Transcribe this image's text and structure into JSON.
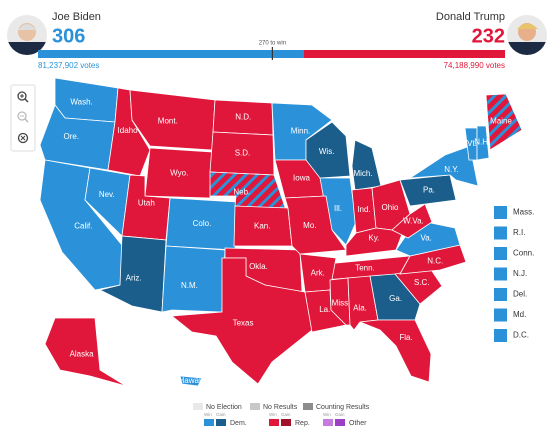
{
  "header": {
    "candidates": [
      {
        "name": "Joe Biden",
        "electoral_votes": 306,
        "votes": "81,237,902 votes",
        "color": "#2b92d9"
      },
      {
        "name": "Donald Trump",
        "electoral_votes": 232,
        "votes": "74,188,990 votes",
        "color": "#e0173a"
      }
    ],
    "threshold": {
      "value": 270,
      "label": "270 to win"
    }
  },
  "map": {
    "states": [
      {
        "label": "Wash.",
        "color": "#2b92d9"
      },
      {
        "label": "Ore.",
        "color": "#2b92d9"
      },
      {
        "label": "Calif.",
        "color": "#2b92d9"
      },
      {
        "label": "Nev.",
        "color": "#2b92d9"
      },
      {
        "label": "Idaho",
        "color": "#e0173a"
      },
      {
        "label": "Mont.",
        "color": "#e0173a"
      },
      {
        "label": "Wyo.",
        "color": "#e0173a"
      },
      {
        "label": "Utah",
        "color": "#e0173a"
      },
      {
        "label": "Ariz.",
        "color": "#1b5e8c"
      },
      {
        "label": "Colo.",
        "color": "#2b92d9"
      },
      {
        "label": "N.M.",
        "color": "#2b92d9"
      },
      {
        "label": "N.D.",
        "color": "#e0173a"
      },
      {
        "label": "S.D.",
        "color": "#e0173a"
      },
      {
        "label": "Neb.",
        "color": "#e0173a",
        "stripe_color": "#2b92d9"
      },
      {
        "label": "Kan.",
        "color": "#e0173a"
      },
      {
        "label": "Okla.",
        "color": "#e0173a"
      },
      {
        "label": "Texas",
        "color": "#e0173a"
      },
      {
        "label": "Minn.",
        "color": "#2b92d9"
      },
      {
        "label": "Iowa",
        "color": "#e0173a"
      },
      {
        "label": "Wis.",
        "color": "#1b5e8c"
      },
      {
        "label": "Ill.",
        "color": "#2b92d9"
      },
      {
        "label": "Mo.",
        "color": "#e0173a"
      },
      {
        "label": "Mich.",
        "color": "#1b5e8c"
      },
      {
        "label": "Ind.",
        "color": "#e0173a"
      },
      {
        "label": "Ohio",
        "color": "#e0173a"
      },
      {
        "label": "Ky.",
        "color": "#e0173a"
      },
      {
        "label": "Tenn.",
        "color": "#e0173a"
      },
      {
        "label": "Ark.",
        "color": "#e0173a"
      },
      {
        "label": "La.",
        "color": "#e0173a"
      },
      {
        "label": "Miss.",
        "color": "#e0173a"
      },
      {
        "label": "Ala.",
        "color": "#e0173a"
      },
      {
        "label": "Ga.",
        "color": "#1b5e8c"
      },
      {
        "label": "Fla.",
        "color": "#e0173a"
      },
      {
        "label": "S.C.",
        "color": "#e0173a"
      },
      {
        "label": "N.C.",
        "color": "#e0173a"
      },
      {
        "label": "Va.",
        "color": "#2b92d9"
      },
      {
        "label": "W.Va.",
        "color": "#e0173a"
      },
      {
        "label": "Pa.",
        "color": "#1b5e8c"
      },
      {
        "label": "N.Y.",
        "color": "#2b92d9"
      },
      {
        "label": "Vt.",
        "color": "#2b92d9"
      },
      {
        "label": "N.H.",
        "color": "#2b92d9"
      },
      {
        "label": "Maine",
        "color": "#e0173a",
        "stripe_color": "#2b92d9"
      },
      {
        "label": "Alaska",
        "color": "#e0173a"
      },
      {
        "label": "Hawaii",
        "color": "#2b92d9"
      }
    ],
    "small_states": [
      {
        "label": "Mass.",
        "color": "#2b92d9"
      },
      {
        "label": "R.I.",
        "color": "#2b92d9"
      },
      {
        "label": "Conn.",
        "color": "#2b92d9"
      },
      {
        "label": "N.J.",
        "color": "#2b92d9"
      },
      {
        "label": "Del.",
        "color": "#2b92d9"
      },
      {
        "label": "Md.",
        "color": "#2b92d9"
      },
      {
        "label": "D.C.",
        "color": "#2b92d9"
      }
    ]
  },
  "legend": {
    "status": [
      {
        "label": "No Election",
        "color": "#e8e8e8"
      },
      {
        "label": "No Results",
        "color": "#c8c8c8"
      },
      {
        "label": "Counting Results",
        "color": "#8c8c8c"
      }
    ],
    "win_label": "Win",
    "gain_label": "Gain",
    "parties": [
      {
        "label": "Dem.",
        "win_color": "#2b92d9",
        "gain_color": "#1b5e8c"
      },
      {
        "label": "Rep.",
        "win_color": "#e0173a",
        "gain_color": "#a3102a"
      },
      {
        "label": "Other",
        "win_color": "#c77be0",
        "gain_color": "#9b3fc4"
      }
    ]
  }
}
